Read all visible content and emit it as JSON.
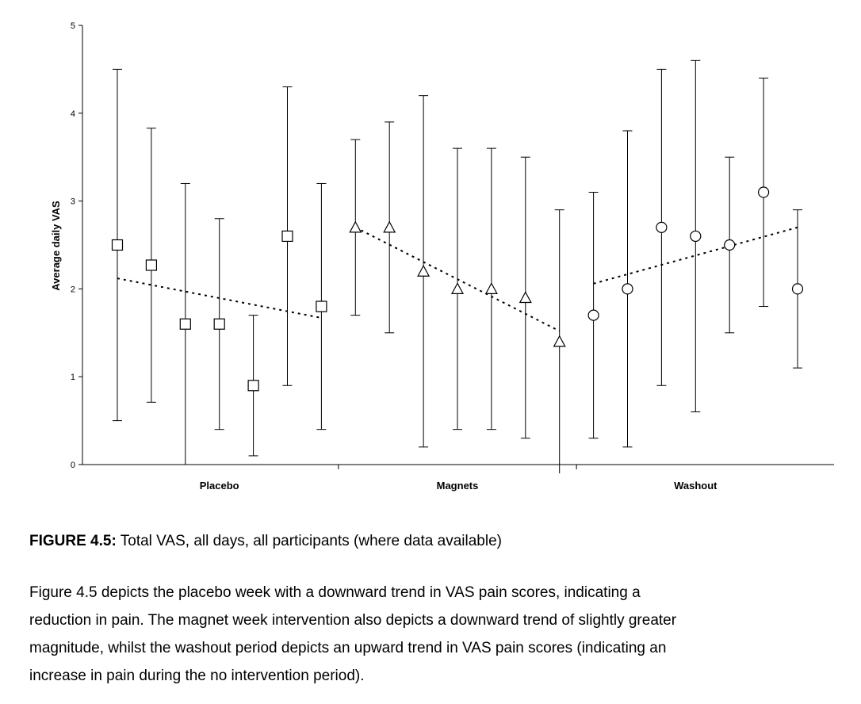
{
  "chart_data": {
    "type": "scatter",
    "ylabel": "Average daily VAS",
    "ylim": [
      0,
      5
    ],
    "yticks": [
      "0",
      "1",
      "2",
      "3",
      "4",
      "5"
    ],
    "categories": [
      "Placebo",
      "Magnets",
      "Washout"
    ],
    "grid": false,
    "series": [
      {
        "group": "Placebo",
        "marker": "square",
        "x": [
          1,
          2,
          3,
          4,
          5,
          6,
          7
        ],
        "y": [
          2.5,
          2.27,
          1.6,
          1.6,
          0.9,
          2.6,
          1.8
        ],
        "err_low": [
          0.5,
          0.71,
          0.0,
          0.4,
          0.1,
          0.9,
          0.4
        ],
        "err_high": [
          4.5,
          3.83,
          3.2,
          2.8,
          1.7,
          4.3,
          3.2
        ],
        "trend": [
          2.12,
          1.67
        ]
      },
      {
        "group": "Magnets",
        "marker": "triangle",
        "x": [
          8,
          9,
          10,
          11,
          12,
          13,
          14
        ],
        "y": [
          2.7,
          2.7,
          2.2,
          2.0,
          2.0,
          1.9,
          1.4
        ],
        "err_low": [
          1.7,
          1.5,
          0.2,
          0.4,
          0.4,
          0.3,
          -0.1
        ],
        "err_high": [
          3.7,
          3.9,
          4.2,
          3.6,
          3.6,
          3.5,
          2.9
        ],
        "trend": [
          2.7,
          1.52
        ]
      },
      {
        "group": "Washout",
        "marker": "circle",
        "x": [
          15,
          16,
          17,
          18,
          19,
          20,
          21
        ],
        "y": [
          1.7,
          2.0,
          2.7,
          2.6,
          2.5,
          3.1,
          2.0
        ],
        "err_low": [
          0.3,
          0.2,
          0.9,
          0.6,
          1.5,
          1.8,
          1.1
        ],
        "err_high": [
          3.1,
          3.8,
          4.5,
          4.6,
          3.5,
          4.4,
          2.9
        ],
        "trend": [
          2.06,
          2.7
        ]
      }
    ]
  },
  "caption": {
    "label": "FIGURE 4.5:",
    "text": " Total VAS, all days, all participants (where data available)"
  },
  "description": {
    "lines": [
      "Figure 4.5 depicts the placebo week with a downward trend in VAS pain scores, indicating a",
      "reduction in pain.  The magnet week intervention also depicts a downward trend of slightly greater",
      "magnitude, whilst the washout period depicts an upward trend in VAS pain scores (indicating an",
      "increase in pain during the no intervention period)."
    ]
  }
}
